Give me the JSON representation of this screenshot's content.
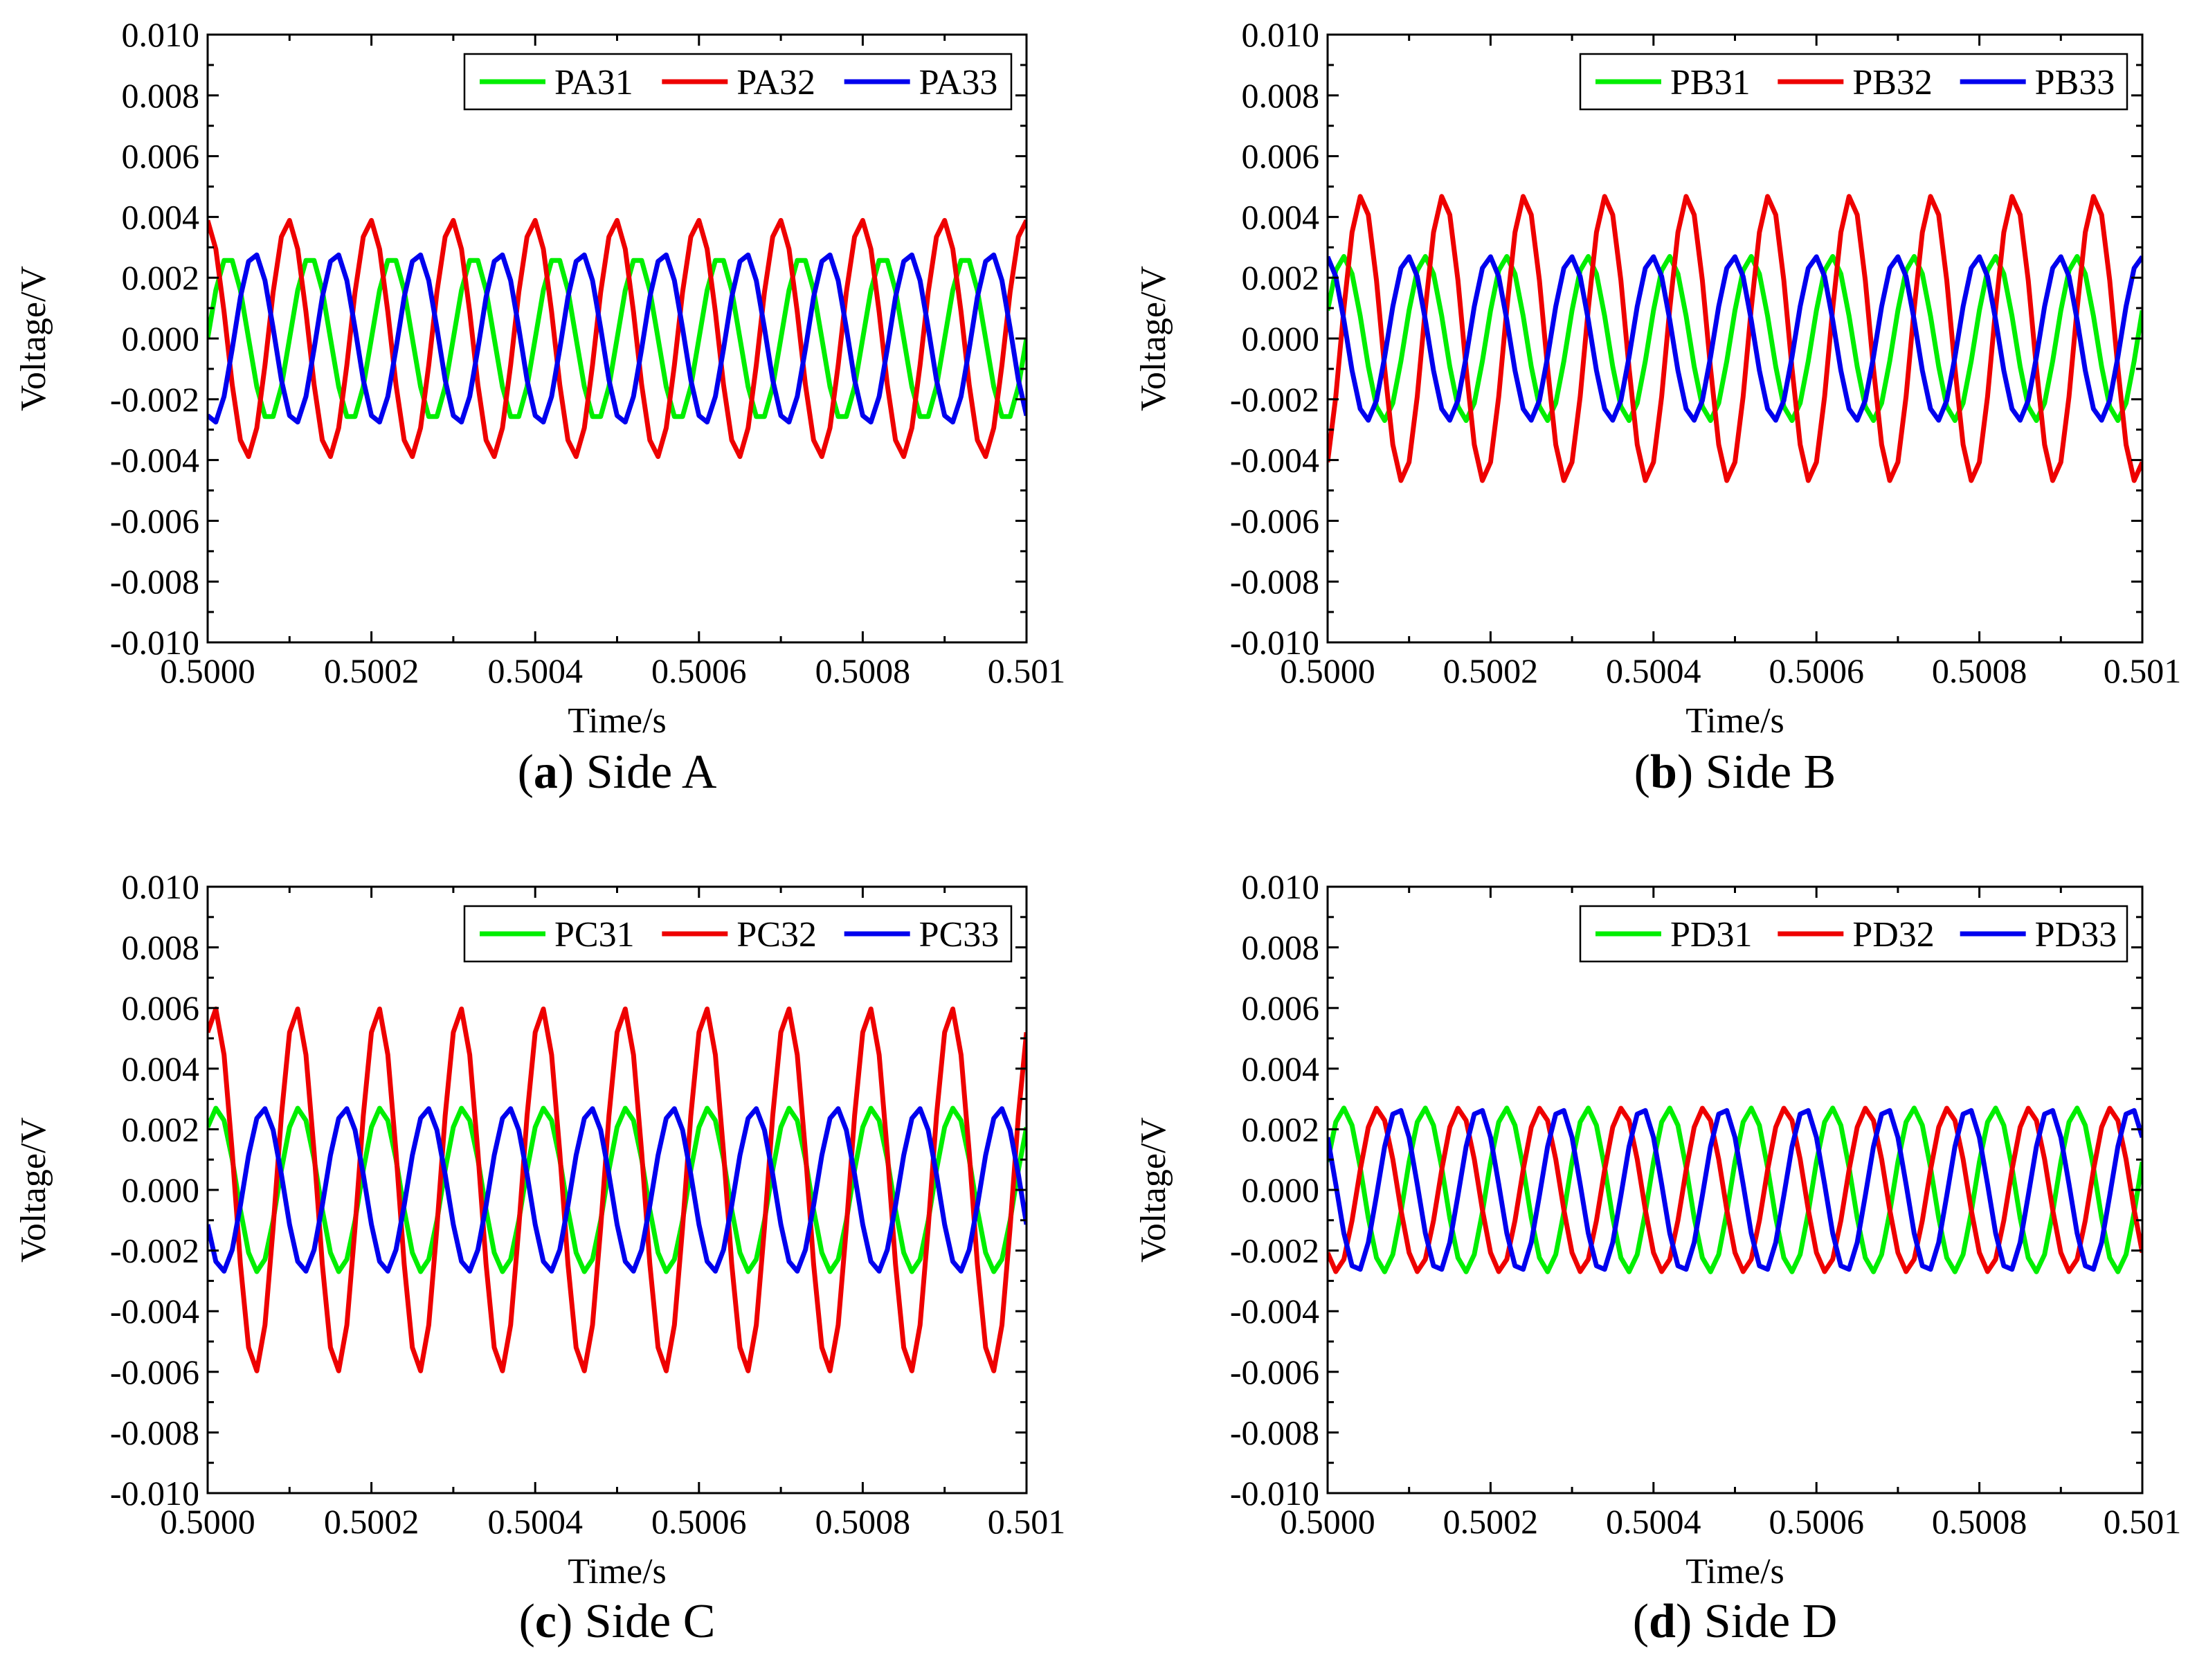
{
  "chart_data": [
    {
      "type": "line",
      "panel_letter": "a",
      "caption": "Side A",
      "xlabel": "Time/s",
      "ylabel": "Voltage/V",
      "xlim": [
        0.5,
        0.501
      ],
      "ylim": [
        -0.01,
        0.01
      ],
      "xticks": [
        "0.5000",
        "0.5002",
        "0.5004",
        "0.5006",
        "0.5008",
        "0.501"
      ],
      "yticks": [
        "0.010",
        "0.008",
        "0.006",
        "0.004",
        "0.002",
        "0.000",
        "-0.002",
        "-0.004",
        "-0.006",
        "-0.008",
        "-0.010"
      ],
      "legend_position": "top-right",
      "series": [
        {
          "name": "PA31",
          "color": "#00ee00",
          "amplitude": 0.0027,
          "frequency_hz": 10000,
          "phase_deg": 0
        },
        {
          "name": "PA32",
          "color": "#ee0000",
          "amplitude": 0.0039,
          "frequency_hz": 10000,
          "phase_deg": 95
        },
        {
          "name": "PA33",
          "color": "#0000ee",
          "amplitude": 0.0028,
          "frequency_hz": 10000,
          "phase_deg": -115
        }
      ]
    },
    {
      "type": "line",
      "panel_letter": "b",
      "caption": "Side B",
      "xlabel": "Time/s",
      "ylabel": "Voltage/V",
      "xlim": [
        0.5,
        0.501
      ],
      "ylim": [
        -0.01,
        0.01
      ],
      "xticks": [
        "0.5000",
        "0.5002",
        "0.5004",
        "0.5006",
        "0.5008",
        "0.501"
      ],
      "yticks": [
        "0.010",
        "0.008",
        "0.006",
        "0.004",
        "0.002",
        "0.000",
        "-0.002",
        "-0.004",
        "-0.006",
        "-0.008",
        "-0.010"
      ],
      "legend_position": "top-right",
      "series": [
        {
          "name": "PB31",
          "color": "#00ee00",
          "amplitude": 0.0027,
          "frequency_hz": 10000,
          "phase_deg": 20
        },
        {
          "name": "PB32",
          "color": "#ee0000",
          "amplitude": 0.0047,
          "frequency_hz": 10000,
          "phase_deg": -60
        },
        {
          "name": "PB33",
          "color": "#0000ee",
          "amplitude": 0.0027,
          "frequency_hz": 10000,
          "phase_deg": 95
        }
      ]
    },
    {
      "type": "line",
      "panel_letter": "c",
      "caption": "Side C",
      "xlabel": "Time/s",
      "ylabel": "Voltage/V",
      "xlim": [
        0.5,
        0.501
      ],
      "ylim": [
        -0.01,
        0.01
      ],
      "xticks": [
        "0.5000",
        "0.5002",
        "0.5004",
        "0.5006",
        "0.5008",
        "0.501"
      ],
      "yticks": [
        "0.010",
        "0.008",
        "0.006",
        "0.004",
        "0.002",
        "0.000",
        "-0.002",
        "-0.004",
        "-0.006",
        "-0.008",
        "-0.010"
      ],
      "legend_position": "top-right",
      "series": [
        {
          "name": "PC31",
          "color": "#00ee00",
          "amplitude": 0.0027,
          "frequency_hz": 10000,
          "phase_deg": 50
        },
        {
          "name": "PC32",
          "color": "#ee0000",
          "amplitude": 0.006,
          "frequency_hz": 10000,
          "phase_deg": 60
        },
        {
          "name": "PC33",
          "color": "#0000ee",
          "amplitude": 0.0027,
          "frequency_hz": 10000,
          "phase_deg": -155
        }
      ]
    },
    {
      "type": "line",
      "panel_letter": "d",
      "caption": "Side D",
      "xlabel": "Time/s",
      "ylabel": "Voltage/V",
      "xlim": [
        0.5,
        0.501
      ],
      "ylim": [
        -0.01,
        0.01
      ],
      "xticks": [
        "0.5000",
        "0.5002",
        "0.5004",
        "0.5006",
        "0.5008",
        "0.501"
      ],
      "yticks": [
        "0.010",
        "0.008",
        "0.006",
        "0.004",
        "0.002",
        "0.000",
        "-0.002",
        "-0.004",
        "-0.006",
        "-0.008",
        "-0.010"
      ],
      "legend_position": "top-right",
      "series": [
        {
          "name": "PD31",
          "color": "#00ee00",
          "amplitude": 0.0027,
          "frequency_hz": 10000,
          "phase_deg": 20
        },
        {
          "name": "PD32",
          "color": "#ee0000",
          "amplitude": 0.0027,
          "frequency_hz": 10000,
          "phase_deg": -130
        },
        {
          "name": "PD33",
          "color": "#0000ee",
          "amplitude": 0.0027,
          "frequency_hz": 10000,
          "phase_deg": 140
        }
      ]
    }
  ]
}
